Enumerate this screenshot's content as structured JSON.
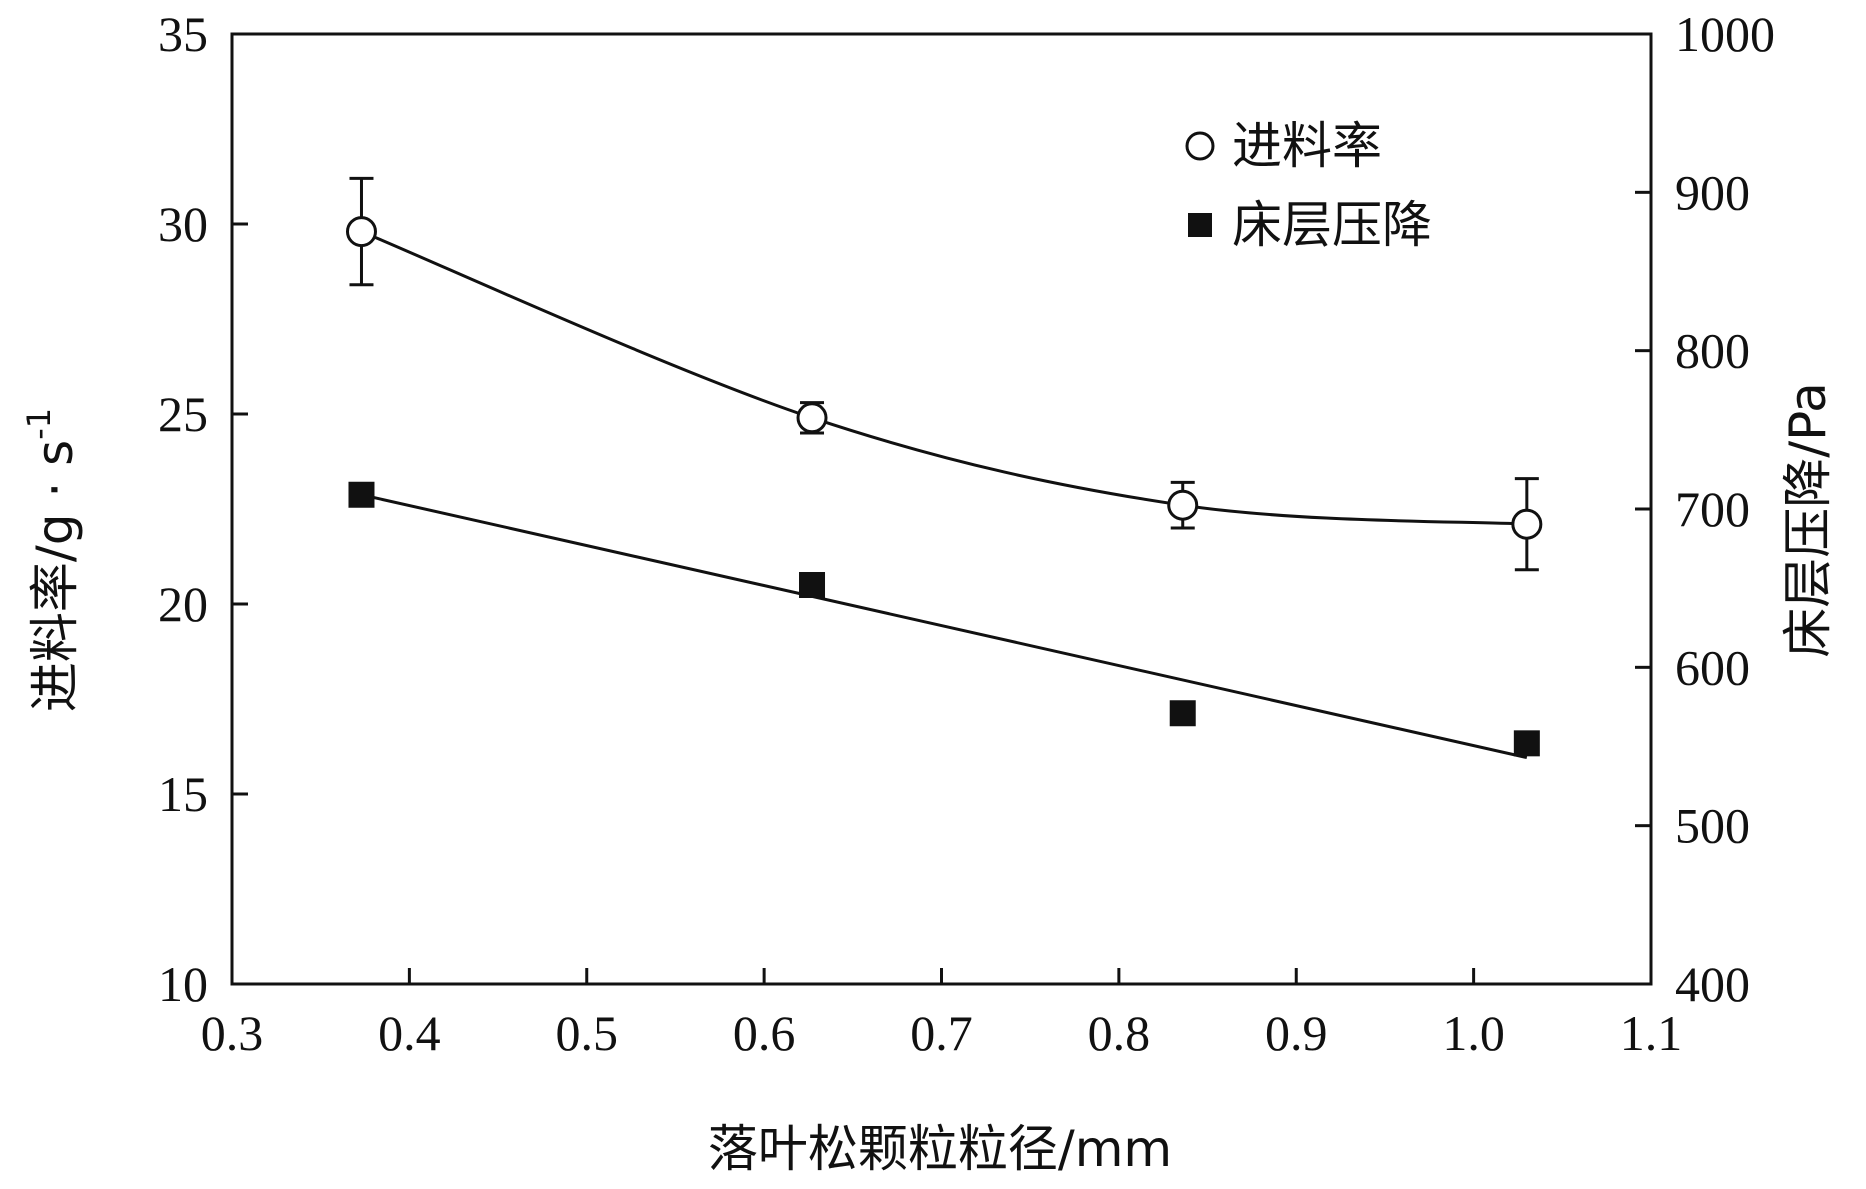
{
  "chart_data": {
    "type": "scatter",
    "xlabel": "落叶松颗粒粒径/mm",
    "ylabel_left": "进料率/g · s",
    "ylabel_left_sup": "-1",
    "ylabel_right": "床层压降/Pa",
    "xlim": [
      0.3,
      1.1
    ],
    "ylim_left": [
      10,
      35
    ],
    "ylim_right": [
      400,
      1000
    ],
    "x_ticks": [
      "0.3",
      "0.4",
      "0.5",
      "0.6",
      "0.7",
      "0.8",
      "0.9",
      "1.0",
      "1.1"
    ],
    "y_left_ticks": [
      "10",
      "15",
      "20",
      "25",
      "30",
      "35"
    ],
    "y_right_ticks": [
      "400",
      "500",
      "600",
      "700",
      "800",
      "900",
      "1000"
    ],
    "grid": false,
    "legend_position": "top-right",
    "series": [
      {
        "name": "进料率",
        "axis": "left",
        "marker": "open-circle",
        "fit": "smooth-curve",
        "x": [
          0.373,
          0.627,
          0.836,
          1.03
        ],
        "y": [
          29.8,
          24.9,
          22.6,
          22.1
        ],
        "error": [
          1.4,
          0.4,
          0.6,
          1.2
        ]
      },
      {
        "name": "床层压降",
        "axis": "right",
        "marker": "filled-square",
        "fit": "linear",
        "x": [
          0.373,
          0.627,
          0.836,
          1.03
        ],
        "y": [
          709,
          652,
          571,
          552
        ],
        "fit_line": [
          [
            0.373,
            709
          ],
          [
            1.03,
            543
          ]
        ]
      }
    ]
  }
}
